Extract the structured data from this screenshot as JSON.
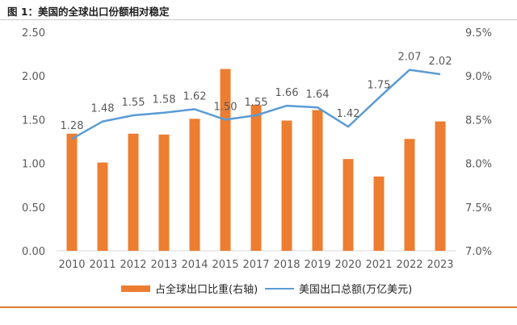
{
  "title": "图 1：美国的全球出口份额相对稳定",
  "colors": {
    "bar": "#ed7d31",
    "line": "#5b9bd5",
    "text": "#595959",
    "grid": "#d9d9d9",
    "accent": "#e07a2b"
  },
  "chart_data": {
    "type": "bar+line",
    "categories": [
      "2010",
      "2011",
      "2012",
      "2013",
      "2014",
      "2015",
      "2017",
      "2018",
      "2019",
      "2020",
      "2021",
      "2022",
      "2023"
    ],
    "series": [
      {
        "name": "占全球出口比重(右轴)",
        "type": "bar",
        "axis": "right",
        "values": [
          8.34,
          8.01,
          8.34,
          8.33,
          8.51,
          9.08,
          8.67,
          8.49,
          8.61,
          8.05,
          7.85,
          8.28,
          8.48
        ]
      },
      {
        "name": "美国出口总额(万亿美元)",
        "type": "line",
        "axis": "left",
        "values": [
          1.28,
          1.48,
          1.55,
          1.58,
          1.62,
          1.5,
          1.55,
          1.66,
          1.64,
          1.42,
          1.75,
          2.07,
          2.02
        ],
        "labels": [
          "1.28",
          "1.48",
          "1.55",
          "1.58",
          "1.62",
          "1.50",
          "1.55",
          "1.66",
          "1.64",
          "1.42",
          "1.75",
          "2.07",
          "2.02"
        ]
      }
    ],
    "y_left": {
      "ylim": [
        0,
        2.5
      ],
      "ticks": [
        "0.00",
        "0.50",
        "1.00",
        "1.50",
        "2.00",
        "2.50"
      ]
    },
    "y_right": {
      "ylim": [
        7.0,
        9.5
      ],
      "ticks": [
        "7.0%",
        "7.5%",
        "8.0%",
        "8.5%",
        "9.0%",
        "9.5%"
      ]
    },
    "grid": false,
    "legend_position": "bottom"
  }
}
